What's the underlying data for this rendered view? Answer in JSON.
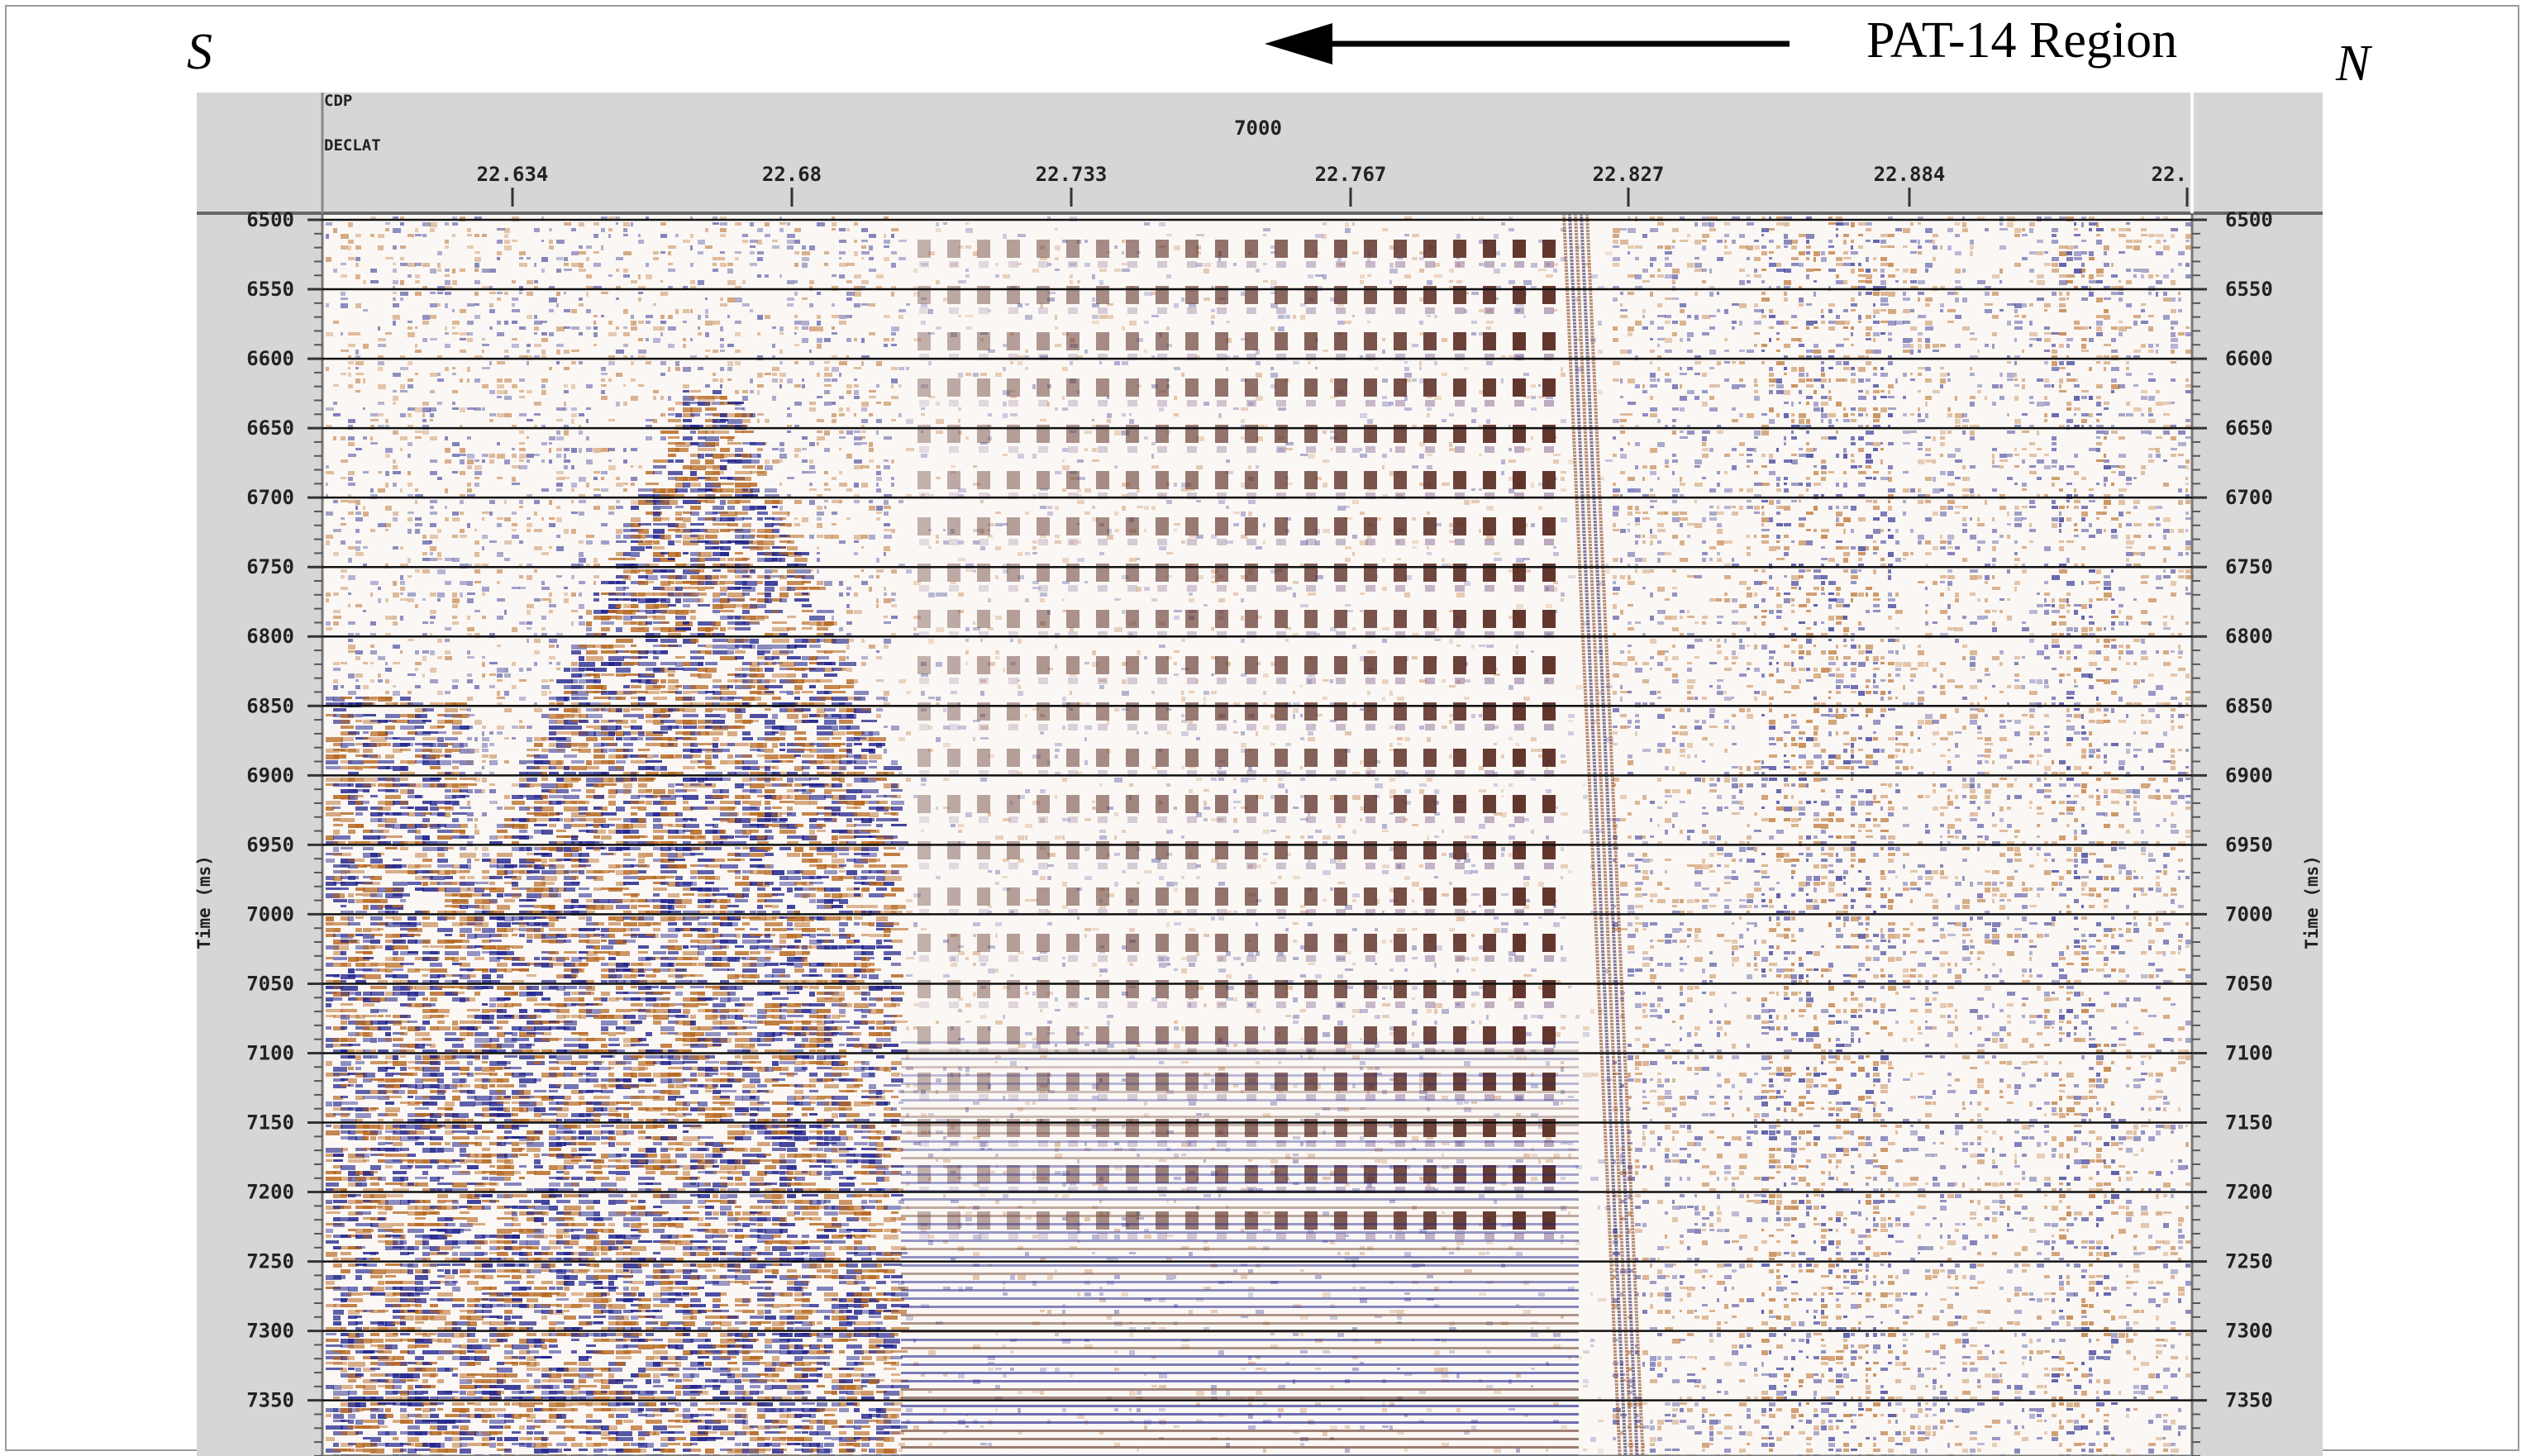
{
  "figure": {
    "direction_left": "S",
    "direction_right": "N",
    "region_label": "PAT-14  Region"
  },
  "section": {
    "header_row1_label": "CDP",
    "header_row2_label": "DECLAT",
    "cdp_value": "7000",
    "declat_ticks": [
      "22.634",
      "22.68",
      "22.733",
      "22.767",
      "22.827",
      "22.884",
      "22."
    ],
    "time_ticks": [
      "6500",
      "6550",
      "6600",
      "6650",
      "6700",
      "6750",
      "6800",
      "6850",
      "6900",
      "6950",
      "7000",
      "7050",
      "7100",
      "7150",
      "7200",
      "7250",
      "7300",
      "7350"
    ],
    "time_axis_label": "Time (ms)"
  },
  "colors": {
    "positive_amplitude": "#b5651d",
    "negative_amplitude": "#1c1f8a",
    "background": "#ffffff",
    "header_gray": "#d6d6d6"
  }
}
